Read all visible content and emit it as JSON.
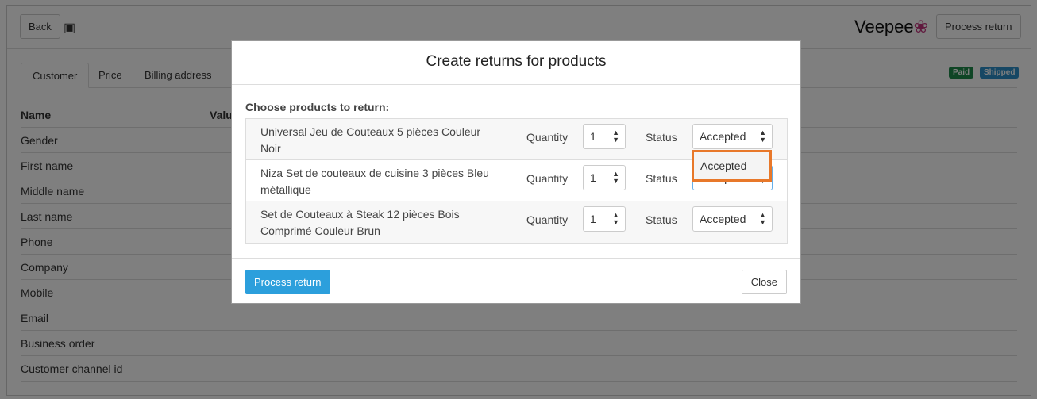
{
  "header": {
    "back": "Back",
    "box_icon": "cube-icon",
    "logo": "Veepee",
    "process_return": "Process return"
  },
  "tabs": [
    "Customer",
    "Price",
    "Billing address"
  ],
  "badges": [
    {
      "label": "Paid",
      "color": "#1e8a4a"
    },
    {
      "label": "Shipped",
      "color": "#2c8fc9"
    }
  ],
  "table": {
    "headers": [
      "Name",
      "Value"
    ],
    "rows": [
      "Gender",
      "First name",
      "Middle name",
      "Last name",
      "Phone",
      "Company",
      "Mobile",
      "Email",
      "Business order",
      "Customer channel id"
    ]
  },
  "modal": {
    "title": "Create returns for products",
    "choose": "Choose products to return:",
    "quantity_label": "Quantity",
    "status_label": "Status",
    "products": [
      {
        "name": "Universal Jeu de Couteaux 5 pièces Couleur Noir",
        "quantity": "1",
        "status": "Accepted"
      },
      {
        "name": "Niza Set de couteaux de cuisine 3 pièces Bleu métallique",
        "quantity": "1",
        "status": "Accepted"
      },
      {
        "name": "Set de Couteaux à Steak 12 pièces Bois Comprimé Couleur Brun",
        "quantity": "1",
        "status": "Accepted"
      }
    ],
    "dropdown_option": "Accepted",
    "process_return": "Process return",
    "close": "Close"
  }
}
